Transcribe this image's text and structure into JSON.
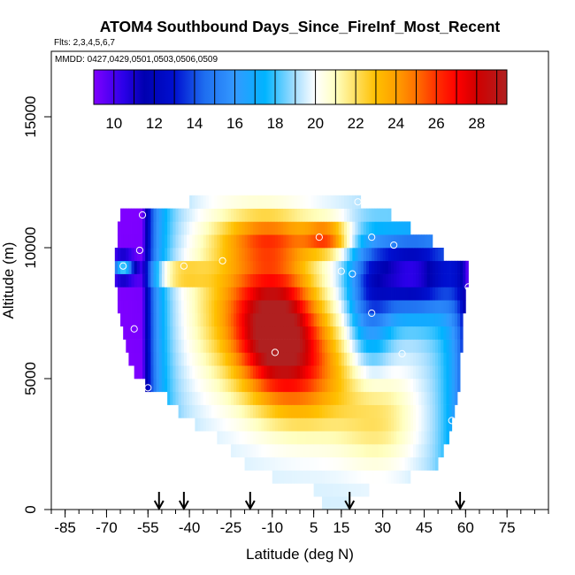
{
  "chart_data": {
    "type": "heatmap",
    "title": "ATOM4 Southbound Days_Since_FireInf_Most_Recent",
    "flights_text": "Flts: 2,3,4,5,6,7",
    "mmdd_text": "MMDD: 0427,0429,0501,0503,0506,0509",
    "xlabel": "Latitude (deg N)",
    "ylabel": "Altitude (m)",
    "xlim": [
      -90,
      90
    ],
    "ylim": [
      0,
      17500
    ],
    "x_major_ticks": [
      -85,
      -70,
      -55,
      -40,
      -25,
      -10,
      5,
      15,
      30,
      45,
      60,
      75
    ],
    "x_tick_labels": [
      "-85",
      "-70",
      "-55",
      "-40",
      "-25",
      "-10",
      "5",
      "15",
      "30",
      "45",
      "60",
      "75"
    ],
    "x_minor_step": 5,
    "y_ticks": [
      0,
      5000,
      10000,
      15000
    ],
    "y_tick_labels": [
      "0",
      "5000",
      "10000",
      "15000"
    ],
    "colorbar": {
      "range": [
        9,
        29.5
      ],
      "ticks": [
        10,
        12,
        14,
        16,
        18,
        20,
        22,
        24,
        26,
        28
      ],
      "tick_labels": [
        "10",
        "12",
        "14",
        "16",
        "18",
        "20",
        "22",
        "24",
        "26",
        "28"
      ],
      "stops": [
        {
          "v": 9,
          "c": "#7f00ff"
        },
        {
          "v": 10.5,
          "c": "#2a00e8"
        },
        {
          "v": 11.5,
          "c": "#0000b0"
        },
        {
          "v": 13,
          "c": "#0010d0"
        },
        {
          "v": 14.5,
          "c": "#1e6ef0"
        },
        {
          "v": 16,
          "c": "#3399ff"
        },
        {
          "v": 17.5,
          "c": "#00b4ff"
        },
        {
          "v": 19,
          "c": "#a6deff"
        },
        {
          "v": 20,
          "c": "#ffffff"
        },
        {
          "v": 21,
          "c": "#ffffc0"
        },
        {
          "v": 22,
          "c": "#ffe060"
        },
        {
          "v": 23,
          "c": "#ffc000"
        },
        {
          "v": 24,
          "c": "#ff9f00"
        },
        {
          "v": 25,
          "c": "#ff7000"
        },
        {
          "v": 26,
          "c": "#ff3000"
        },
        {
          "v": 27,
          "c": "#ff0000"
        },
        {
          "v": 28,
          "c": "#d00000"
        },
        {
          "v": 29.5,
          "c": "#b02020"
        }
      ]
    },
    "envelope": [
      {
        "alt": 250,
        "lat_min": 8,
        "lat_max": 18
      },
      {
        "alt": 750,
        "lat_min": 5,
        "lat_max": 25
      },
      {
        "alt": 1250,
        "lat_min": -10,
        "lat_max": 40
      },
      {
        "alt": 1750,
        "lat_min": -20,
        "lat_max": 50
      },
      {
        "alt": 2250,
        "lat_min": -25,
        "lat_max": 52
      },
      {
        "alt": 2750,
        "lat_min": -30,
        "lat_max": 54
      },
      {
        "alt": 3250,
        "lat_min": -38,
        "lat_max": 55
      },
      {
        "alt": 3750,
        "lat_min": -44,
        "lat_max": 56
      },
      {
        "alt": 4250,
        "lat_min": -48,
        "lat_max": 57
      },
      {
        "alt": 4750,
        "lat_min": -56,
        "lat_max": 58
      },
      {
        "alt": 5250,
        "lat_min": -60,
        "lat_max": 58
      },
      {
        "alt": 5750,
        "lat_min": -62,
        "lat_max": 58
      },
      {
        "alt": 6250,
        "lat_min": -63,
        "lat_max": 59
      },
      {
        "alt": 6750,
        "lat_min": -64,
        "lat_max": 59
      },
      {
        "alt": 7250,
        "lat_min": -65,
        "lat_max": 59
      },
      {
        "alt": 7750,
        "lat_min": -66,
        "lat_max": 60
      },
      {
        "alt": 8250,
        "lat_min": -66,
        "lat_max": 60
      },
      {
        "alt": 8750,
        "lat_min": -67,
        "lat_max": 61
      },
      {
        "alt": 9250,
        "lat_min": -67,
        "lat_max": 61
      },
      {
        "alt": 9750,
        "lat_min": -67,
        "lat_max": 52
      },
      {
        "alt": 10250,
        "lat_min": -66,
        "lat_max": 48
      },
      {
        "alt": 10750,
        "lat_min": -66,
        "lat_max": 40
      },
      {
        "alt": 11250,
        "lat_min": -65,
        "lat_max": 33
      },
      {
        "alt": 11750,
        "lat_min": -40,
        "lat_max": 22
      }
    ],
    "field_model": {
      "base": 19.5,
      "components": [
        {
          "type": "ridge_x",
          "lat_min": -57,
          "lat_max": 62,
          "delta": -10.5
        },
        {
          "type": "bump",
          "lat": -8,
          "alt": 6800,
          "lat_scale": 14,
          "alt_scale": 2400,
          "delta": 8.5
        },
        {
          "type": "bump",
          "lat": -20,
          "alt": 7800,
          "lat_scale": 20,
          "alt_scale": 3000,
          "delta": 4
        },
        {
          "type": "bump",
          "lat": 5,
          "alt": 5200,
          "lat_scale": 16,
          "alt_scale": 2200,
          "delta": 4
        },
        {
          "type": "bump",
          "lat": 28,
          "alt": 3500,
          "lat_scale": 14,
          "alt_scale": 1800,
          "delta": 2.5
        },
        {
          "type": "bump",
          "lat": 10,
          "alt": 10400,
          "lat_scale": 8,
          "alt_scale": 600,
          "delta": 5
        },
        {
          "type": "bump",
          "lat": -10,
          "alt": 10400,
          "lat_scale": 18,
          "alt_scale": 900,
          "delta": 4
        },
        {
          "type": "bump",
          "lat": -64,
          "alt": 9250,
          "lat_scale": 4,
          "alt_scale": 400,
          "delta": 9
        },
        {
          "type": "bump",
          "lat": -45,
          "alt": 9000,
          "lat_scale": 10,
          "alt_scale": 400,
          "delta": 4
        },
        {
          "type": "bump",
          "lat": 40,
          "alt": 9000,
          "lat_scale": 16,
          "alt_scale": 1500,
          "delta": -9
        },
        {
          "type": "bump",
          "lat": 25,
          "alt": 7700,
          "lat_scale": 8,
          "alt_scale": 2500,
          "delta": -4
        }
      ]
    },
    "obs_points": [
      {
        "lat": -57,
        "alt": 11250
      },
      {
        "lat": -58,
        "alt": 9900
      },
      {
        "lat": -64,
        "alt": 9300
      },
      {
        "lat": -42,
        "alt": 9300
      },
      {
        "lat": -28,
        "alt": 9500
      },
      {
        "lat": -60,
        "alt": 6900
      },
      {
        "lat": -55,
        "alt": 4650
      },
      {
        "lat": -9,
        "alt": 6000
      },
      {
        "lat": 7,
        "alt": 10400
      },
      {
        "lat": 15,
        "alt": 9100
      },
      {
        "lat": 19,
        "alt": 9000
      },
      {
        "lat": 26,
        "alt": 10400
      },
      {
        "lat": 34,
        "alt": 10100
      },
      {
        "lat": 21,
        "alt": 11750
      },
      {
        "lat": 26,
        "alt": 7500
      },
      {
        "lat": 37,
        "alt": 5950
      },
      {
        "lat": 55,
        "alt": 3400
      },
      {
        "lat": 61,
        "alt": 8500
      }
    ],
    "arrow_lats": [
      -51,
      -42,
      -18,
      18,
      58
    ]
  }
}
